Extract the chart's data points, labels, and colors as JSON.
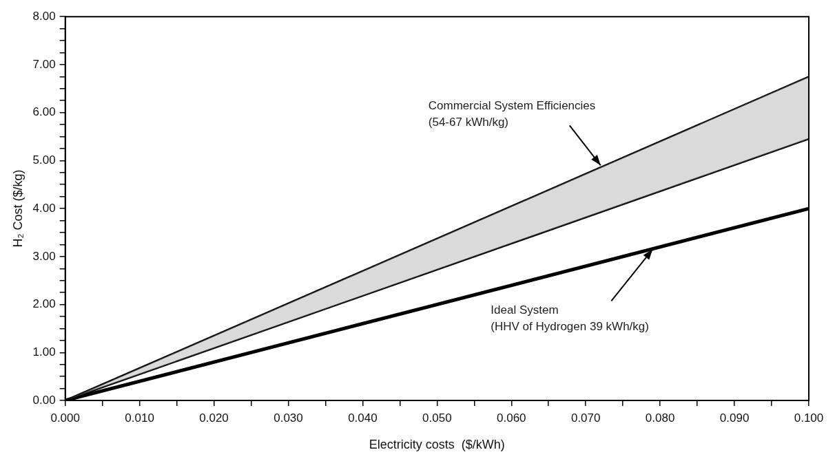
{
  "chart_data": {
    "type": "line",
    "xlabel": "Electricity costs  ($/kWh)",
    "ylabel": "H₂ Cost ($/kg)",
    "x": [
      0,
      0.1
    ],
    "series": [
      {
        "color": "#000000",
        "values": [
          0,
          6.75
        ],
        "lower": [
          0,
          5.45
        ],
        "upper": [
          0,
          6.75
        ]
      },
      {
        "color": "#000000",
        "values": [
          0,
          5.45
        ]
      },
      {
        "color": "#000000",
        "values": [
          0,
          4.0
        ]
      }
    ],
    "xlim": [
      0,
      0.1
    ],
    "xticks": [
      {
        "value": 0,
        "label": "0.000"
      },
      {
        "value": 0.005,
        "label": null
      },
      {
        "value": 0.01,
        "label": "0.010"
      },
      {
        "value": 0.015,
        "label": null
      },
      {
        "value": 0.02,
        "label": "0.020"
      },
      {
        "value": 0.025,
        "label": null
      },
      {
        "value": 0.03,
        "label": "0.030"
      },
      {
        "value": 0.035,
        "label": null
      },
      {
        "value": 0.04,
        "label": "0.040"
      },
      {
        "value": 0.045,
        "label": null
      },
      {
        "value": 0.05,
        "label": "0.050"
      },
      {
        "value": 0.055,
        "label": null
      },
      {
        "value": 0.06,
        "label": "0.060"
      },
      {
        "value": 0.065,
        "label": null
      },
      {
        "value": 0.07,
        "label": "0.070"
      },
      {
        "value": 0.075,
        "label": null
      },
      {
        "value": 0.08,
        "label": "0.080"
      },
      {
        "value": 0.085,
        "label": null
      },
      {
        "value": 0.09,
        "label": "0.090"
      },
      {
        "value": 0.095,
        "label": null
      },
      {
        "value": 0.1,
        "label": "0.100"
      }
    ],
    "ylim": [
      0,
      8
    ],
    "yticks": [
      {
        "value": 0,
        "label": "0.00"
      },
      {
        "value": 0.25,
        "label": null
      },
      {
        "value": 0.5,
        "label": null
      },
      {
        "value": 0.75,
        "label": null
      },
      {
        "value": 1,
        "label": "1.00"
      },
      {
        "value": 1.25,
        "label": null
      },
      {
        "value": 1.5,
        "label": null
      },
      {
        "value": 1.75,
        "label": null
      },
      {
        "value": 2,
        "label": "2.00"
      },
      {
        "value": 2.25,
        "label": null
      },
      {
        "value": 2.5,
        "label": null
      },
      {
        "value": 2.75,
        "label": null
      },
      {
        "value": 3,
        "label": "3.00"
      },
      {
        "value": 3.25,
        "label": null
      },
      {
        "value": 3.5,
        "label": null
      },
      {
        "value": 3.75,
        "label": null
      },
      {
        "value": 4,
        "label": "4.00"
      },
      {
        "value": 4.25,
        "label": null
      },
      {
        "value": 4.5,
        "label": null
      },
      {
        "value": 4.75,
        "label": null
      },
      {
        "value": 5,
        "label": "5.00"
      },
      {
        "value": 5.25,
        "label": null
      },
      {
        "value": 5.5,
        "label": null
      },
      {
        "value": 5.75,
        "label": null
      },
      {
        "value": 6,
        "label": "6.00"
      },
      {
        "value": 6.25,
        "label": null
      },
      {
        "value": 6.5,
        "label": null
      },
      {
        "value": 6.75,
        "label": null
      },
      {
        "value": 7,
        "label": "7.00"
      },
      {
        "value": 7.25,
        "label": null
      },
      {
        "value": 7.5,
        "label": null
      },
      {
        "value": 7.75,
        "label": null
      },
      {
        "value": 8,
        "label": "8.00"
      }
    ],
    "grid": false,
    "legend": false,
    "marker": "none",
    "line_style": "solid",
    "annotations": [
      {
        "text": "Commercial System Efficiencies\n(54-67 kWh/kg)",
        "x": 0.072,
        "y": 4.9
      },
      {
        "text": "Ideal System\n(HHV of Hydrogen 39 kWh/kg)",
        "x": 0.079,
        "y": 3.15
      }
    ]
  }
}
